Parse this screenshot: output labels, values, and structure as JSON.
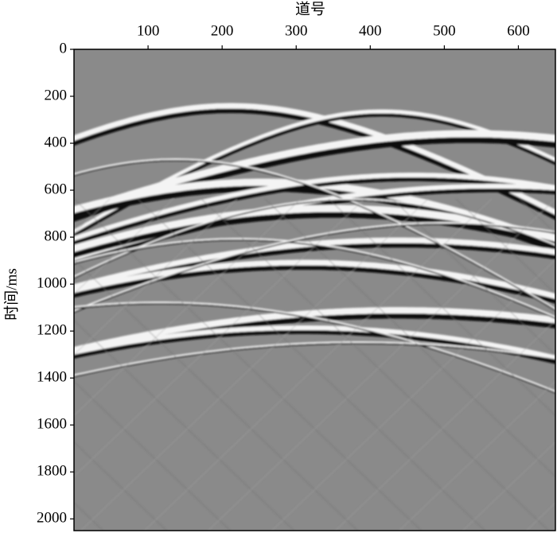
{
  "chart_data": {
    "type": "image",
    "xlabel": "道号",
    "ylabel": "时间/ms",
    "xlim": [
      0,
      650
    ],
    "xticks": [
      100,
      200,
      300,
      400,
      500,
      600
    ],
    "ylim": [
      0,
      2050
    ],
    "yticks": [
      0,
      200,
      400,
      600,
      800,
      1000,
      1200,
      1400,
      1600,
      1800,
      2000
    ],
    "y_inverted": true,
    "x_axis_position": "top",
    "colormap": "gray"
  }
}
